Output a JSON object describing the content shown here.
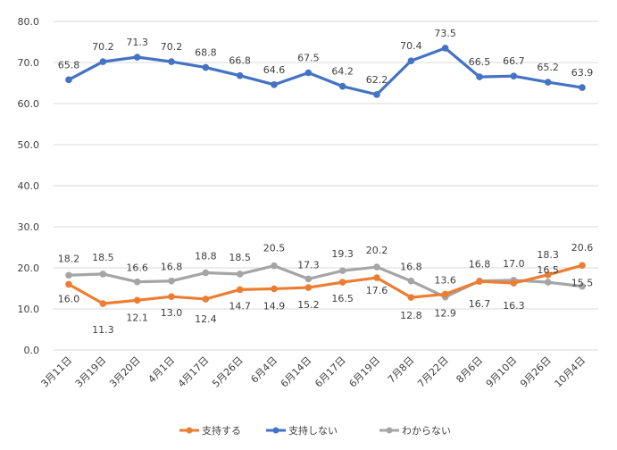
{
  "chart_data": {
    "type": "line",
    "title": "",
    "xlabel": "",
    "ylabel": "",
    "ylim": [
      0,
      80
    ],
    "yticks": [
      "0.0",
      "10.0",
      "20.0",
      "30.0",
      "40.0",
      "50.0",
      "60.0",
      "70.0",
      "80.0"
    ],
    "grid": true,
    "legend_position": "bottom",
    "categories": [
      "3月11日",
      "3月19日",
      "3月20日",
      "4月1日",
      "4月17日",
      "5月26日",
      "6月4日",
      "6月14日",
      "6月17日",
      "6月19日",
      "7月8日",
      "7月22日",
      "8月6日",
      "9月10日",
      "9月26日",
      "10月4日"
    ],
    "series": [
      {
        "name": "支持する",
        "color": "#ED7D31",
        "values": [
          16.0,
          11.3,
          12.1,
          13.0,
          12.4,
          14.7,
          14.9,
          15.2,
          16.5,
          17.6,
          12.8,
          13.6,
          16.7,
          16.3,
          18.3,
          20.6
        ]
      },
      {
        "name": "支持しない",
        "color": "#4472C4",
        "values": [
          65.8,
          70.2,
          71.3,
          70.2,
          68.8,
          66.8,
          64.6,
          67.5,
          64.2,
          62.2,
          70.4,
          73.5,
          66.5,
          66.7,
          65.2,
          63.9
        ]
      },
      {
        "name": "わからない",
        "color": "#A5A5A5",
        "values": [
          18.2,
          18.5,
          16.6,
          16.8,
          18.8,
          18.5,
          20.5,
          17.3,
          19.3,
          20.2,
          16.8,
          12.9,
          16.8,
          17.0,
          16.5,
          15.5
        ]
      }
    ]
  }
}
